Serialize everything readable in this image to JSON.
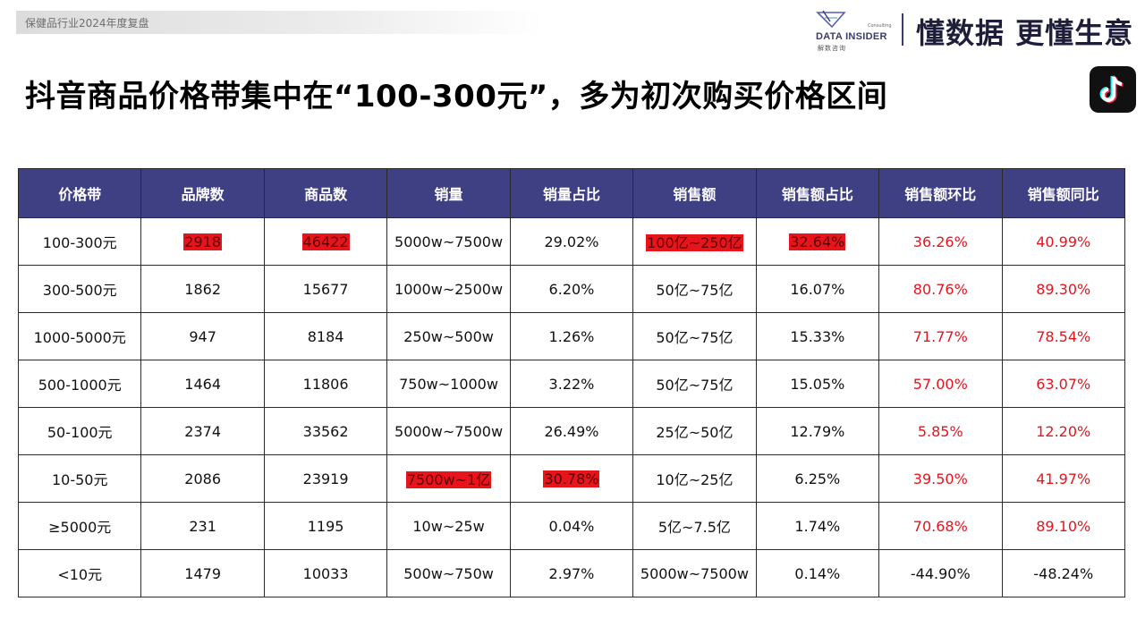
{
  "header": {
    "topbar_label": "保健品行业2024年度复盘",
    "brand_name": "DATA INSIDER",
    "brand_small": "Consulting",
    "brand_sub": "解数咨询",
    "slogan": "懂数据 更懂生意"
  },
  "title": "抖音商品价格带集中在“100-300元”，多为初次购买价格区间",
  "icons": {
    "platform": "tiktok-icon",
    "logo": "data-insider-logo-icon"
  },
  "colors": {
    "header_bg": "#3f3f83",
    "highlight": "#e8141b",
    "growth_text": "#e4151c"
  },
  "table": {
    "columns": [
      "价格带",
      "品牌数",
      "商品数",
      "销量",
      "销量占比",
      "销售额",
      "销售额占比",
      "销售额环比",
      "销售额同比"
    ],
    "rows": [
      [
        "100-300元",
        "2918",
        "46422",
        "5000w~7500w",
        "29.02%",
        "100亿~250亿",
        "32.64%",
        "36.26%",
        "40.99%"
      ],
      [
        "300-500元",
        "1862",
        "15677",
        "1000w~2500w",
        "6.20%",
        "50亿~75亿",
        "16.07%",
        "80.76%",
        "89.30%"
      ],
      [
        "1000-5000元",
        "947",
        "8184",
        "250w~500w",
        "1.26%",
        "50亿~75亿",
        "15.33%",
        "71.77%",
        "78.54%"
      ],
      [
        "500-1000元",
        "1464",
        "11806",
        "750w~1000w",
        "3.22%",
        "50亿~75亿",
        "15.05%",
        "57.00%",
        "63.07%"
      ],
      [
        "50-100元",
        "2374",
        "33562",
        "5000w~7500w",
        "26.49%",
        "25亿~50亿",
        "12.79%",
        "5.85%",
        "12.20%"
      ],
      [
        "10-50元",
        "2086",
        "23919",
        "7500w~1亿",
        "30.78%",
        "10亿~25亿",
        "6.25%",
        "39.50%",
        "41.97%"
      ],
      [
        "≥5000元",
        "231",
        "1195",
        "10w~25w",
        "0.04%",
        "5亿~7.5亿",
        "1.74%",
        "70.68%",
        "89.10%"
      ],
      [
        "<10元",
        "1479",
        "10033",
        "500w~750w",
        "2.97%",
        "5000w~7500w",
        "0.14%",
        "-44.90%",
        "-48.24%"
      ]
    ],
    "highlighted_cells": [
      [
        0,
        1
      ],
      [
        0,
        2
      ],
      [
        0,
        5
      ],
      [
        0,
        6
      ],
      [
        5,
        3
      ],
      [
        5,
        4
      ]
    ]
  }
}
